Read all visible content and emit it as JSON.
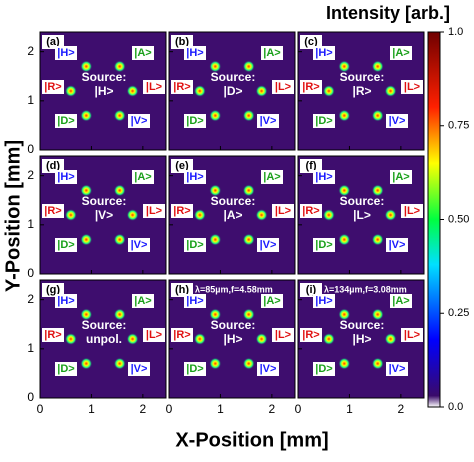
{
  "chart_data": {
    "type": "heatmap-grid",
    "xlabel": "X-Position [mm]",
    "ylabel": "Y-Position [mm]",
    "xlim": [
      0,
      2.45
    ],
    "ylim": [
      0,
      2.4
    ],
    "xticks": [
      0,
      1,
      2
    ],
    "yticks": [
      0,
      1,
      2
    ],
    "colorbar": {
      "title": "Intensity [arb.]",
      "clim": [
        0,
        1
      ],
      "ticks": [
        {
          "value": 0,
          "label": "0.0"
        },
        0.25,
        {
          "value": 0.5,
          "label": "0.50"
        },
        0.75,
        {
          "value": 1,
          "label": "1.0"
        }
      ]
    },
    "states": [
      {
        "label": "|H>",
        "color": "#1a1aff"
      },
      {
        "label": "|A>",
        "color": "#1aa01a"
      },
      {
        "label": "|R>",
        "color": "#e01010"
      },
      {
        "label": "|L>",
        "color": "#e01010"
      },
      {
        "label": "|D>",
        "color": "#1aa01a"
      },
      {
        "label": "|V>",
        "color": "#1a1aff"
      }
    ],
    "panels": [
      {
        "label": "(a)",
        "source": [
          "Source:",
          "|H>"
        ]
      },
      {
        "label": "(b)",
        "source": [
          "Source:",
          "|D>"
        ]
      },
      {
        "label": "(c)",
        "source": [
          "Source:",
          "|R>"
        ]
      },
      {
        "label": "(d)",
        "source": [
          "Source:",
          "|V>"
        ]
      },
      {
        "label": "(e)",
        "source": [
          "Source:",
          "|A>"
        ]
      },
      {
        "label": "(f)",
        "source": [
          "Source:",
          "|L>"
        ]
      },
      {
        "label": "(g)",
        "source": [
          "Source:",
          "unpol."
        ]
      },
      {
        "label": "(h)",
        "source": [
          "Source:",
          "|H>"
        ],
        "note": "λ=85µm,f=4.58mm"
      },
      {
        "label": "(i)",
        "source": [
          "Source:",
          "|H>"
        ],
        "note": "λ=134µm,f=3.08mm"
      }
    ]
  }
}
